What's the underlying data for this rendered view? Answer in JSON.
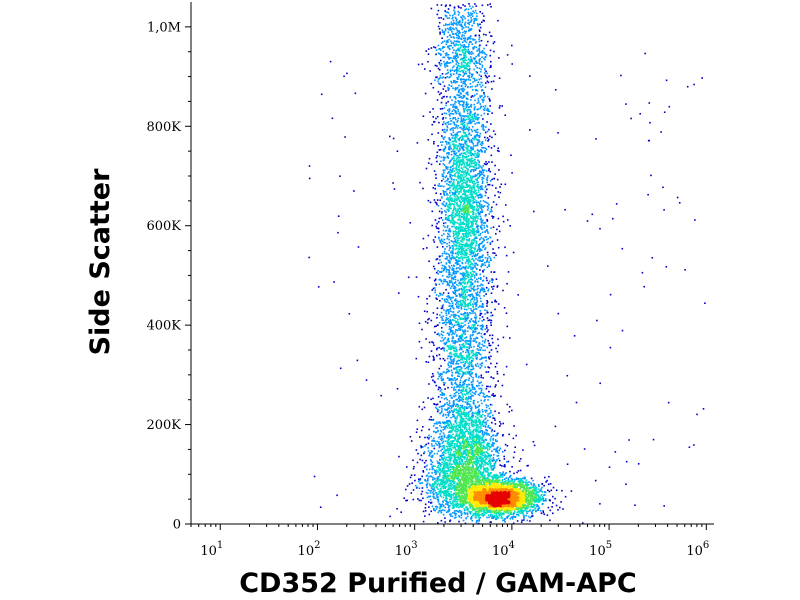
{
  "chart_data": {
    "type": "scatter",
    "title": "",
    "xlabel": "CD352 Purified / GAM-APC",
    "ylabel": "Side Scatter",
    "x_scale": "log",
    "xlim": [
      5,
      1200000
    ],
    "ylim": [
      0,
      1050000
    ],
    "x_ticks": [
      {
        "value": 10,
        "base": "10",
        "exp": "1"
      },
      {
        "value": 100,
        "base": "10",
        "exp": "2"
      },
      {
        "value": 1000,
        "base": "10",
        "exp": "3"
      },
      {
        "value": 10000,
        "base": "10",
        "exp": "4"
      },
      {
        "value": 100000,
        "base": "10",
        "exp": "5"
      },
      {
        "value": 1000000,
        "base": "10",
        "exp": "6"
      }
    ],
    "y_ticks": [
      {
        "value": 0,
        "label": "0"
      },
      {
        "value": 200000,
        "label": "200K"
      },
      {
        "value": 400000,
        "label": "400K"
      },
      {
        "value": 600000,
        "label": "600K"
      },
      {
        "value": 800000,
        "label": "800K"
      },
      {
        "value": 1000000,
        "label": "1,0M"
      }
    ],
    "grid": false,
    "legend": "none",
    "density_colors": [
      "#0000c8",
      "#0096ff",
      "#00dcc8",
      "#50e650",
      "#ffeb00",
      "#ff8c00",
      "#e60000"
    ],
    "series": [
      {
        "clusters": [
          {
            "x_center": 3200,
            "y_center": 640000,
            "x_spread_log": 0.14,
            "y_spread": 150000,
            "count": 3200
          },
          {
            "x_center": 3000,
            "y_center": 960000,
            "x_spread_log": 0.14,
            "y_spread": 60000,
            "count": 700
          },
          {
            "x_center": 3000,
            "y_center": 310000,
            "x_spread_log": 0.16,
            "y_spread": 100000,
            "count": 1100
          },
          {
            "x_center": 3500,
            "y_center": 150000,
            "x_spread_log": 0.18,
            "y_spread": 50000,
            "count": 1600
          },
          {
            "x_center": 7500,
            "y_center": 55000,
            "x_spread_log": 0.2,
            "y_spread": 18000,
            "count": 3200
          },
          {
            "x_center": 2500,
            "y_center": 80000,
            "x_spread_log": 0.2,
            "y_spread": 35000,
            "count": 900
          }
        ],
        "outliers": 160
      }
    ]
  }
}
